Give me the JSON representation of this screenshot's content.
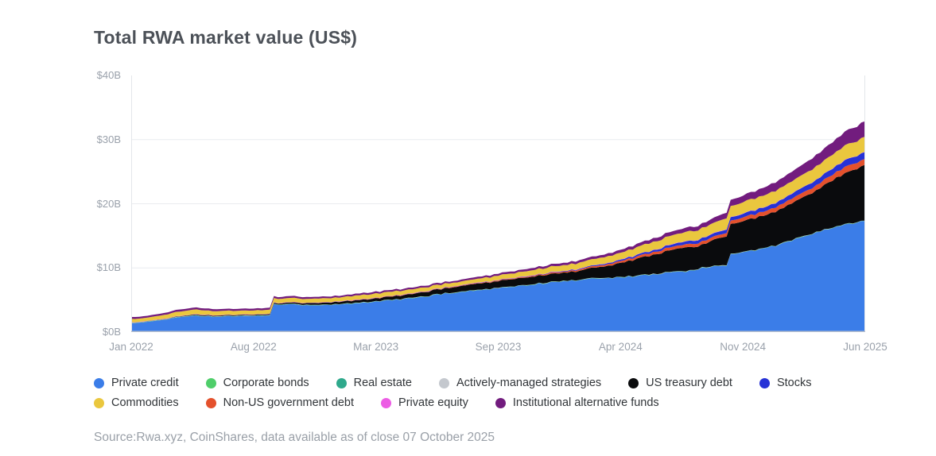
{
  "header": {
    "title": "Total RWA market value (US$)"
  },
  "source_note": "Source:Rwa.xyz, CoinShares, data available as of close 07 October 2025",
  "chart_data": {
    "type": "area",
    "stacked": true,
    "title": "Total RWA market value (US$)",
    "xlabel": "",
    "ylabel": "",
    "ylim": [
      0,
      40
    ],
    "grid": true,
    "gridline_values": [
      10,
      20,
      30
    ],
    "legend_position": "bottom",
    "y_ticks": [
      {
        "value": 0,
        "label": "$0B"
      },
      {
        "value": 10,
        "label": "$10B"
      },
      {
        "value": 20,
        "label": "$20B"
      },
      {
        "value": 30,
        "label": "$30B"
      },
      {
        "value": 40,
        "label": "$40B"
      }
    ],
    "x_ticks": [
      "Jan 2022",
      "Aug 2022",
      "Mar 2023",
      "Sep 2023",
      "Apr 2024",
      "Nov 2024",
      "Jun 2025"
    ],
    "x_start": "Jan 2022",
    "x_end": "Oct 2025",
    "n_points": 46,
    "x_unit": "month",
    "stack_order": [
      "private_credit",
      "corporate_bonds",
      "real_estate",
      "actively_managed_strategies",
      "us_treasury_debt",
      "non_us_government_debt",
      "stocks",
      "private_equity",
      "commodities",
      "institutional_alternative_funds"
    ],
    "legend_rows": [
      [
        "private_credit",
        "corporate_bonds",
        "real_estate",
        "actively_managed_strategies",
        "us_treasury_debt",
        "stocks"
      ],
      [
        "commodities",
        "non_us_government_debt",
        "private_equity",
        "institutional_alternative_funds"
      ]
    ],
    "series": [
      {
        "id": "private_credit",
        "label": "Private credit",
        "color": "#3b7de8",
        "values": [
          1.4,
          1.6,
          1.9,
          2.4,
          2.5,
          2.4,
          2.45,
          2.5,
          2.55,
          4.3,
          4.3,
          4.1,
          4.15,
          4.3,
          4.5,
          4.75,
          5.0,
          5.2,
          5.5,
          5.9,
          6.2,
          6.4,
          6.7,
          7.0,
          7.2,
          7.5,
          7.8,
          8.0,
          8.2,
          8.35,
          8.5,
          8.7,
          9.0,
          9.2,
          9.4,
          10.0,
          10.4,
          12.2,
          12.6,
          13.1,
          13.8,
          14.8,
          15.5,
          16.2,
          16.8,
          17.3
        ]
      },
      {
        "id": "corporate_bonds",
        "label": "Corporate bonds",
        "color": "#4fce6a",
        "values": 0.03
      },
      {
        "id": "real_estate",
        "label": "Real estate",
        "color": "#2fa98c",
        "values": 0.03
      },
      {
        "id": "actively_managed_strategies",
        "label": "Actively-managed strategies",
        "color": "#c4c8ce",
        "values": 0.02
      },
      {
        "id": "us_treasury_debt",
        "label": "US treasury debt",
        "color": "#0a0b0d",
        "values": [
          0,
          0,
          0.02,
          0.05,
          0.1,
          0.1,
          0.1,
          0.1,
          0.1,
          0.15,
          0.2,
          0.25,
          0.3,
          0.35,
          0.4,
          0.45,
          0.5,
          0.55,
          0.65,
          0.75,
          0.85,
          0.95,
          1.0,
          1.1,
          1.15,
          1.2,
          1.25,
          1.3,
          1.5,
          1.8,
          2.2,
          2.6,
          3.0,
          3.3,
          3.7,
          3.5,
          4.3,
          4.7,
          4.9,
          5.1,
          5.4,
          5.9,
          6.5,
          7.3,
          8.1,
          8.7
        ]
      },
      {
        "id": "non_us_government_debt",
        "label": "Non-US government debt",
        "color": "#e4512c",
        "values": [
          0.02,
          0.02,
          0.02,
          0.02,
          0.02,
          0.02,
          0.02,
          0.02,
          0.02,
          0.02,
          0.02,
          0.02,
          0.03,
          0.03,
          0.04,
          0.04,
          0.05,
          0.05,
          0.06,
          0.06,
          0.07,
          0.08,
          0.09,
          0.1,
          0.12,
          0.14,
          0.16,
          0.18,
          0.2,
          0.25,
          0.3,
          0.35,
          0.4,
          0.45,
          0.5,
          0.5,
          0.5,
          0.55,
          0.6,
          0.65,
          0.7,
          0.75,
          0.8,
          0.9,
          1.0,
          0.9
        ]
      },
      {
        "id": "stocks",
        "label": "Stocks",
        "color": "#2632d6",
        "values": [
          0.01,
          0.01,
          0.01,
          0.01,
          0.01,
          0.01,
          0.01,
          0.01,
          0.01,
          0.01,
          0.01,
          0.01,
          0.02,
          0.02,
          0.02,
          0.02,
          0.02,
          0.02,
          0.03,
          0.03,
          0.03,
          0.03,
          0.04,
          0.04,
          0.05,
          0.06,
          0.08,
          0.1,
          0.12,
          0.15,
          0.2,
          0.25,
          0.3,
          0.38,
          0.45,
          0.5,
          0.5,
          0.55,
          0.6,
          0.65,
          0.7,
          0.8,
          0.85,
          0.95,
          1.05,
          1.1
        ]
      },
      {
        "id": "private_equity",
        "label": "Private equity",
        "color": "#ec5ce4",
        "values": 0.04
      },
      {
        "id": "commodities",
        "label": "Commodities",
        "color": "#eac73e",
        "values": [
          0.5,
          0.5,
          0.6,
          0.7,
          0.7,
          0.65,
          0.6,
          0.6,
          0.6,
          0.65,
          0.65,
          0.6,
          0.6,
          0.6,
          0.65,
          0.65,
          0.65,
          0.6,
          0.6,
          0.58,
          0.55,
          0.6,
          0.65,
          0.7,
          0.75,
          0.8,
          0.85,
          0.9,
          0.95,
          1.0,
          1.05,
          1.15,
          1.25,
          1.35,
          1.45,
          1.55,
          1.65,
          1.75,
          1.8,
          1.85,
          1.9,
          1.95,
          2.05,
          2.15,
          2.25,
          2.35
        ]
      },
      {
        "id": "institutional_alternative_funds",
        "label": "Institutional alternative funds",
        "color": "#721c7e",
        "values": [
          0.3,
          0.3,
          0.3,
          0.32,
          0.32,
          0.3,
          0.3,
          0.3,
          0.3,
          0.3,
          0.3,
          0.28,
          0.27,
          0.27,
          0.28,
          0.28,
          0.28,
          0.28,
          0.28,
          0.28,
          0.27,
          0.28,
          0.3,
          0.32,
          0.33,
          0.35,
          0.35,
          0.38,
          0.4,
          0.42,
          0.45,
          0.5,
          0.55,
          0.6,
          0.65,
          0.7,
          0.8,
          1.0,
          1.1,
          1.25,
          1.4,
          1.55,
          1.75,
          1.95,
          2.2,
          2.4
        ]
      }
    ],
    "colors": {
      "axis_text": "#9aa1ab",
      "grid_line": "#e9ebef",
      "plot_border": "#e3e6ea",
      "baseline": "#b7c0cd"
    }
  }
}
